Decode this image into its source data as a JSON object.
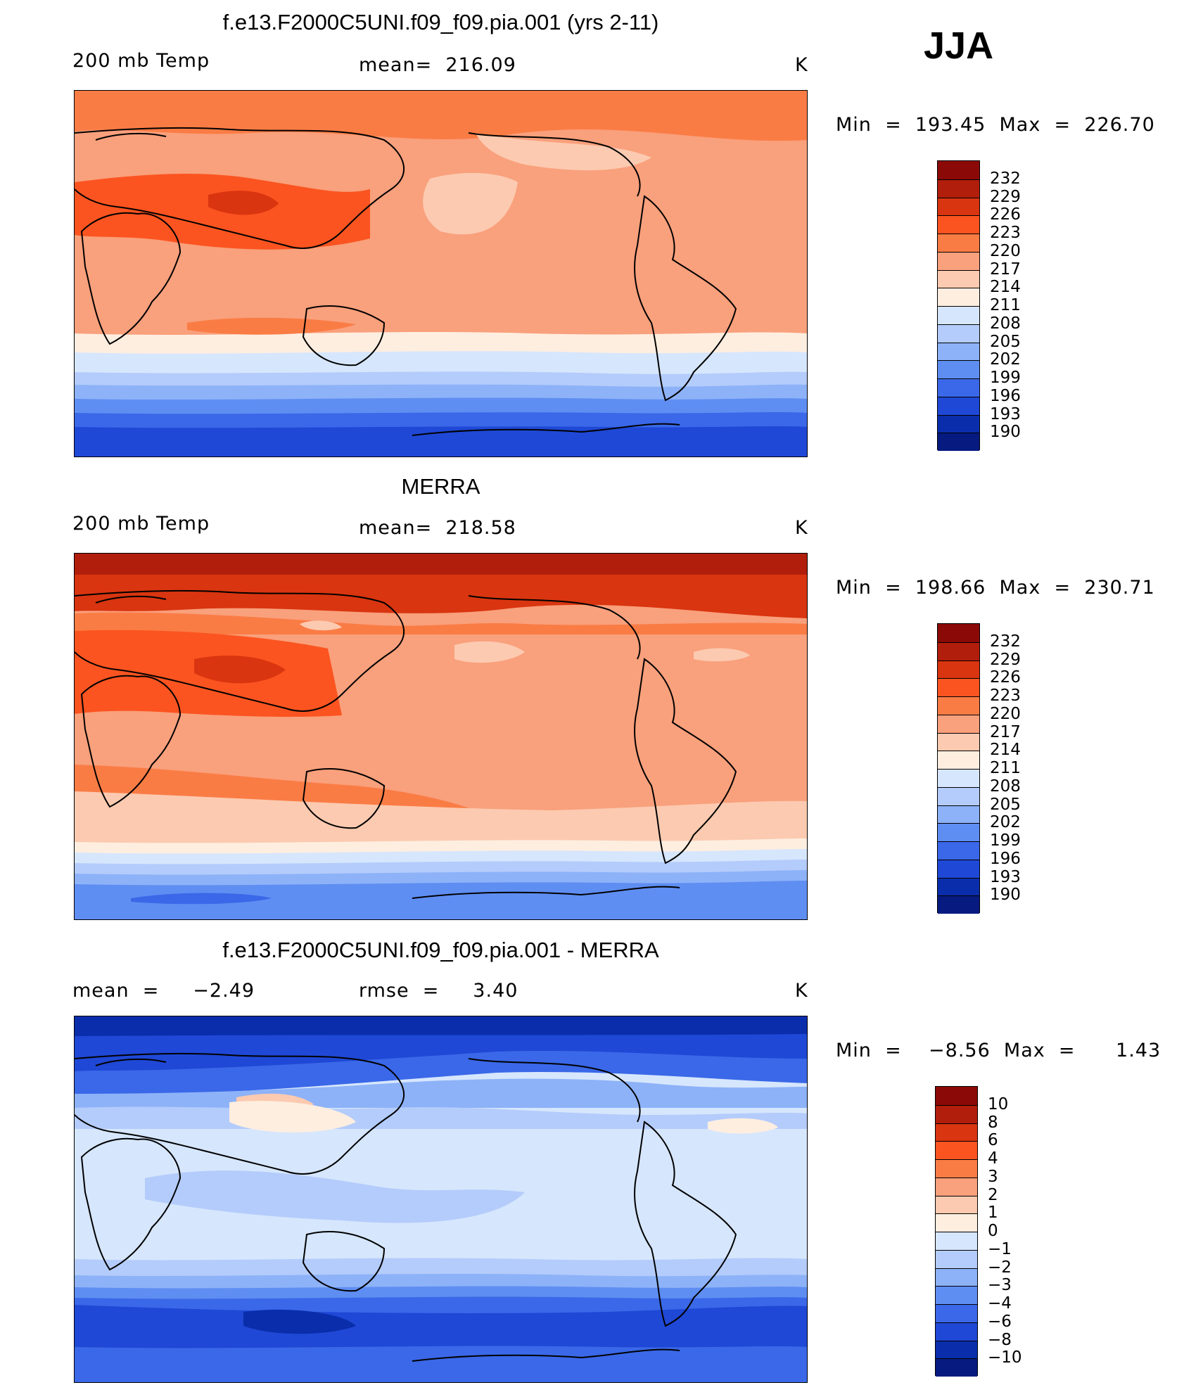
{
  "header": {
    "season": "JJA"
  },
  "panels": [
    {
      "title": "f.e13.F2000C5UNI.f09_f09.pia.001 (yrs 2-11)",
      "left_label": "200 mb Temp",
      "center_label": "mean=  216.09",
      "units": "K",
      "minmax": "Min  =  193.45  Max  =  226.70",
      "map_fill": "#f9a07c"
    },
    {
      "title": "MERRA",
      "left_label": "200 mb Temp",
      "center_label": "mean=  218.58",
      "units": "K",
      "minmax": "Min  =  198.66  Max  =  230.71",
      "map_fill": "#f9a07c"
    },
    {
      "title": "f.e13.F2000C5UNI.f09_f09.pia.001 - MERRA",
      "left_label": "mean  =     −2.49",
      "center_label": "rmse  =     3.40",
      "units": "K",
      "minmax": "Min  =    −8.56  Max  =      1.43",
      "map_fill": "#c6d8fb"
    }
  ],
  "chart_data": [
    {
      "type": "heatmap",
      "title": "f.e13.F2000C5UNI.f09_f09.pia.001 (yrs 2-11)",
      "variable": "200 mb Temp",
      "units": "K",
      "mean": 216.09,
      "min": 193.45,
      "max": 226.7,
      "colorbar_levels": [
        232,
        229,
        226,
        223,
        220,
        217,
        214,
        211,
        208,
        205,
        202,
        199,
        196,
        193,
        190
      ],
      "colorbar_colors": [
        "#8b0a08",
        "#b21e0c",
        "#d93510",
        "#fb5420",
        "#fa7c45",
        "#f9a07c",
        "#fccab0",
        "#feeee0",
        "#d6e6fd",
        "#b4ccfb",
        "#8db2f8",
        "#5f8ef2",
        "#3a68e8",
        "#1f48d6",
        "#0a2eab",
        "#061a80"
      ]
    },
    {
      "type": "heatmap",
      "title": "MERRA",
      "variable": "200 mb Temp",
      "units": "K",
      "mean": 218.58,
      "min": 198.66,
      "max": 230.71,
      "colorbar_levels": [
        232,
        229,
        226,
        223,
        220,
        217,
        214,
        211,
        208,
        205,
        202,
        199,
        196,
        193,
        190
      ],
      "colorbar_colors": [
        "#8b0a08",
        "#b21e0c",
        "#d93510",
        "#fb5420",
        "#fa7c45",
        "#f9a07c",
        "#fccab0",
        "#feeee0",
        "#d6e6fd",
        "#b4ccfb",
        "#8db2f8",
        "#5f8ef2",
        "#3a68e8",
        "#1f48d6",
        "#0a2eab",
        "#061a80"
      ]
    },
    {
      "type": "heatmap",
      "title": "f.e13.F2000C5UNI.f09_f09.pia.001 - MERRA",
      "units": "K",
      "mean": -2.49,
      "rmse": 3.4,
      "min": -8.56,
      "max": 1.43,
      "colorbar_levels": [
        10,
        8,
        6,
        4,
        3,
        2,
        1,
        0,
        -1,
        -2,
        -3,
        -4,
        -6,
        -8,
        -10
      ],
      "colorbar_labels": [
        "10",
        "8",
        "6",
        "4",
        "3",
        "2",
        "1",
        "0",
        "−1",
        "−2",
        "−3",
        "−4",
        "−6",
        "−8",
        "−10"
      ],
      "colorbar_colors": [
        "#8b0a08",
        "#b21e0c",
        "#d93510",
        "#fb5420",
        "#fa7c45",
        "#f9a07c",
        "#fccab0",
        "#feeee0",
        "#d6e6fd",
        "#b4ccfb",
        "#8db2f8",
        "#5f8ef2",
        "#3a68e8",
        "#1f48d6",
        "#0a2eab",
        "#061a80"
      ]
    }
  ]
}
